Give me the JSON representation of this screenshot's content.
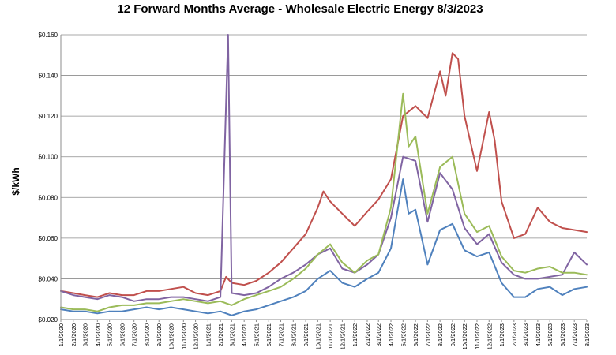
{
  "chart_data": {
    "type": "line",
    "title": "12 Forward Months Average - Wholesale Electric Energy 8/3/2023",
    "xlabel": "",
    "ylabel": "$/kWh",
    "ylim": [
      0.02,
      0.16
    ],
    "yticks": [
      "$0.020",
      "$0.040",
      "$0.060",
      "$0.080",
      "$0.100",
      "$0.120",
      "$0.140",
      "$0.160"
    ],
    "ytick_values": [
      0.02,
      0.04,
      0.06,
      0.08,
      0.1,
      0.12,
      0.14,
      0.16
    ],
    "grid": true,
    "legend": "none",
    "x_tick_labels": [
      "1/1/2020",
      "2/1/2020",
      "3/1/2020",
      "4/1/2020",
      "5/1/2020",
      "6/1/2020",
      "7/1/2020",
      "8/1/2020",
      "9/1/2020",
      "10/1/2020",
      "11/1/2020",
      "12/1/2020",
      "1/1/2021",
      "2/1/2021",
      "3/1/2021",
      "4/1/2021",
      "5/1/2021",
      "6/1/2021",
      "7/1/2021",
      "8/1/2021",
      "9/1/2021",
      "10/1/2021",
      "11/1/2021",
      "12/1/2021",
      "1/1/2022",
      "2/1/2022",
      "3/1/2022",
      "4/1/2022",
      "5/1/2022",
      "6/1/2022",
      "7/1/2022",
      "8/1/2022",
      "9/1/2022",
      "10/1/2022",
      "11/1/2022",
      "12/1/2022",
      "1/1/2023",
      "2/1/2023",
      "3/1/2023",
      "4/1/2023",
      "5/1/2023",
      "6/1/2023",
      "7/1/2023",
      "8/1/2023"
    ],
    "series": [
      {
        "color": "#c0504d",
        "points": [
          [
            "1/1/2020",
            0.034
          ],
          [
            "2/1/2020",
            0.033
          ],
          [
            "3/1/2020",
            0.032
          ],
          [
            "4/1/2020",
            0.031
          ],
          [
            "5/1/2020",
            0.033
          ],
          [
            "6/1/2020",
            0.032
          ],
          [
            "7/1/2020",
            0.032
          ],
          [
            "8/1/2020",
            0.034
          ],
          [
            "9/1/2020",
            0.034
          ],
          [
            "10/1/2020",
            0.035
          ],
          [
            "11/1/2020",
            0.036
          ],
          [
            "12/1/2020",
            0.033
          ],
          [
            "1/1/2021",
            0.032
          ],
          [
            "2/1/2021",
            0.034
          ],
          [
            "2/15/2021",
            0.041
          ],
          [
            "3/1/2021",
            0.038
          ],
          [
            "4/1/2021",
            0.037
          ],
          [
            "5/1/2021",
            0.039
          ],
          [
            "6/1/2021",
            0.043
          ],
          [
            "7/1/2021",
            0.048
          ],
          [
            "8/1/2021",
            0.055
          ],
          [
            "9/1/2021",
            0.062
          ],
          [
            "10/1/2021",
            0.075
          ],
          [
            "10/15/2021",
            0.083
          ],
          [
            "11/1/2021",
            0.078
          ],
          [
            "12/1/2021",
            0.072
          ],
          [
            "1/1/2022",
            0.066
          ],
          [
            "2/1/2022",
            0.073
          ],
          [
            "3/1/2022",
            0.079
          ],
          [
            "4/1/2022",
            0.089
          ],
          [
            "5/1/2022",
            0.12
          ],
          [
            "6/1/2022",
            0.125
          ],
          [
            "7/1/2022",
            0.119
          ],
          [
            "8/1/2022",
            0.142
          ],
          [
            "8/15/2022",
            0.13
          ],
          [
            "9/1/2022",
            0.151
          ],
          [
            "9/15/2022",
            0.148
          ],
          [
            "10/1/2022",
            0.12
          ],
          [
            "11/1/2022",
            0.093
          ],
          [
            "12/1/2022",
            0.122
          ],
          [
            "12/15/2022",
            0.108
          ],
          [
            "1/1/2023",
            0.078
          ],
          [
            "2/1/2023",
            0.06
          ],
          [
            "3/1/2023",
            0.062
          ],
          [
            "4/1/2023",
            0.075
          ],
          [
            "5/1/2023",
            0.068
          ],
          [
            "6/1/2023",
            0.065
          ],
          [
            "7/1/2023",
            0.064
          ],
          [
            "8/1/2023",
            0.063
          ]
        ]
      },
      {
        "color": "#8064a2",
        "points": [
          [
            "1/1/2020",
            0.034
          ],
          [
            "2/1/2020",
            0.032
          ],
          [
            "3/1/2020",
            0.031
          ],
          [
            "4/1/2020",
            0.03
          ],
          [
            "5/1/2020",
            0.032
          ],
          [
            "6/1/2020",
            0.031
          ],
          [
            "7/1/2020",
            0.029
          ],
          [
            "8/1/2020",
            0.03
          ],
          [
            "9/1/2020",
            0.03
          ],
          [
            "10/1/2020",
            0.031
          ],
          [
            "11/1/2020",
            0.031
          ],
          [
            "12/1/2020",
            0.03
          ],
          [
            "1/1/2021",
            0.029
          ],
          [
            "2/1/2021",
            0.031
          ],
          [
            "2/20/2021",
            0.16
          ],
          [
            "3/1/2021",
            0.033
          ],
          [
            "4/1/2021",
            0.032
          ],
          [
            "5/1/2021",
            0.033
          ],
          [
            "6/1/2021",
            0.036
          ],
          [
            "7/1/2021",
            0.04
          ],
          [
            "8/1/2021",
            0.043
          ],
          [
            "9/1/2021",
            0.047
          ],
          [
            "10/1/2021",
            0.052
          ],
          [
            "11/1/2021",
            0.055
          ],
          [
            "12/1/2021",
            0.045
          ],
          [
            "1/1/2022",
            0.043
          ],
          [
            "2/1/2022",
            0.047
          ],
          [
            "3/1/2022",
            0.052
          ],
          [
            "4/1/2022",
            0.07
          ],
          [
            "5/1/2022",
            0.1
          ],
          [
            "6/1/2022",
            0.098
          ],
          [
            "7/1/2022",
            0.068
          ],
          [
            "8/1/2022",
            0.092
          ],
          [
            "9/1/2022",
            0.084
          ],
          [
            "10/1/2022",
            0.065
          ],
          [
            "11/1/2022",
            0.057
          ],
          [
            "12/1/2022",
            0.062
          ],
          [
            "1/1/2023",
            0.048
          ],
          [
            "2/1/2023",
            0.042
          ],
          [
            "3/1/2023",
            0.04
          ],
          [
            "4/1/2023",
            0.04
          ],
          [
            "5/1/2023",
            0.041
          ],
          [
            "6/1/2023",
            0.042
          ],
          [
            "7/1/2023",
            0.053
          ],
          [
            "8/1/2023",
            0.047
          ]
        ]
      },
      {
        "color": "#9bbb59",
        "points": [
          [
            "1/1/2020",
            0.026
          ],
          [
            "2/1/2020",
            0.025
          ],
          [
            "3/1/2020",
            0.025
          ],
          [
            "4/1/2020",
            0.024
          ],
          [
            "5/1/2020",
            0.026
          ],
          [
            "6/1/2020",
            0.027
          ],
          [
            "7/1/2020",
            0.027
          ],
          [
            "8/1/2020",
            0.028
          ],
          [
            "9/1/2020",
            0.028
          ],
          [
            "10/1/2020",
            0.029
          ],
          [
            "11/1/2020",
            0.03
          ],
          [
            "12/1/2020",
            0.029
          ],
          [
            "1/1/2021",
            0.028
          ],
          [
            "2/1/2021",
            0.029
          ],
          [
            "3/1/2021",
            0.027
          ],
          [
            "4/1/2021",
            0.03
          ],
          [
            "5/1/2021",
            0.032
          ],
          [
            "6/1/2021",
            0.034
          ],
          [
            "7/1/2021",
            0.036
          ],
          [
            "8/1/2021",
            0.04
          ],
          [
            "9/1/2021",
            0.045
          ],
          [
            "10/1/2021",
            0.052
          ],
          [
            "11/1/2021",
            0.057
          ],
          [
            "12/1/2021",
            0.048
          ],
          [
            "1/1/2022",
            0.043
          ],
          [
            "2/1/2022",
            0.049
          ],
          [
            "3/1/2022",
            0.052
          ],
          [
            "4/1/2022",
            0.075
          ],
          [
            "5/1/2022",
            0.131
          ],
          [
            "5/15/2022",
            0.105
          ],
          [
            "6/1/2022",
            0.11
          ],
          [
            "7/1/2022",
            0.072
          ],
          [
            "8/1/2022",
            0.095
          ],
          [
            "9/1/2022",
            0.1
          ],
          [
            "10/1/2022",
            0.072
          ],
          [
            "11/1/2022",
            0.063
          ],
          [
            "12/1/2022",
            0.066
          ],
          [
            "1/1/2023",
            0.051
          ],
          [
            "2/1/2023",
            0.044
          ],
          [
            "3/1/2023",
            0.043
          ],
          [
            "4/1/2023",
            0.045
          ],
          [
            "5/1/2023",
            0.046
          ],
          [
            "6/1/2023",
            0.043
          ],
          [
            "7/1/2023",
            0.043
          ],
          [
            "8/1/2023",
            0.042
          ]
        ]
      },
      {
        "color": "#4f81bd",
        "points": [
          [
            "1/1/2020",
            0.025
          ],
          [
            "2/1/2020",
            0.024
          ],
          [
            "3/1/2020",
            0.024
          ],
          [
            "4/1/2020",
            0.023
          ],
          [
            "5/1/2020",
            0.024
          ],
          [
            "6/1/2020",
            0.024
          ],
          [
            "7/1/2020",
            0.025
          ],
          [
            "8/1/2020",
            0.026
          ],
          [
            "9/1/2020",
            0.025
          ],
          [
            "10/1/2020",
            0.026
          ],
          [
            "11/1/2020",
            0.025
          ],
          [
            "12/1/2020",
            0.024
          ],
          [
            "1/1/2021",
            0.023
          ],
          [
            "2/1/2021",
            0.024
          ],
          [
            "3/1/2021",
            0.022
          ],
          [
            "4/1/2021",
            0.024
          ],
          [
            "5/1/2021",
            0.025
          ],
          [
            "6/1/2021",
            0.027
          ],
          [
            "7/1/2021",
            0.029
          ],
          [
            "8/1/2021",
            0.031
          ],
          [
            "9/1/2021",
            0.034
          ],
          [
            "10/1/2021",
            0.04
          ],
          [
            "11/1/2021",
            0.044
          ],
          [
            "12/1/2021",
            0.038
          ],
          [
            "1/1/2022",
            0.036
          ],
          [
            "2/1/2022",
            0.04
          ],
          [
            "3/1/2022",
            0.043
          ],
          [
            "4/1/2022",
            0.055
          ],
          [
            "5/1/2022",
            0.089
          ],
          [
            "5/15/2022",
            0.072
          ],
          [
            "6/1/2022",
            0.074
          ],
          [
            "7/1/2022",
            0.047
          ],
          [
            "8/1/2022",
            0.064
          ],
          [
            "9/1/2022",
            0.067
          ],
          [
            "10/1/2022",
            0.054
          ],
          [
            "11/1/2022",
            0.051
          ],
          [
            "12/1/2022",
            0.053
          ],
          [
            "1/1/2023",
            0.038
          ],
          [
            "2/1/2023",
            0.031
          ],
          [
            "3/1/2023",
            0.031
          ],
          [
            "4/1/2023",
            0.035
          ],
          [
            "5/1/2023",
            0.036
          ],
          [
            "6/1/2023",
            0.032
          ],
          [
            "7/1/2023",
            0.035
          ],
          [
            "8/1/2023",
            0.036
          ]
        ]
      }
    ]
  }
}
